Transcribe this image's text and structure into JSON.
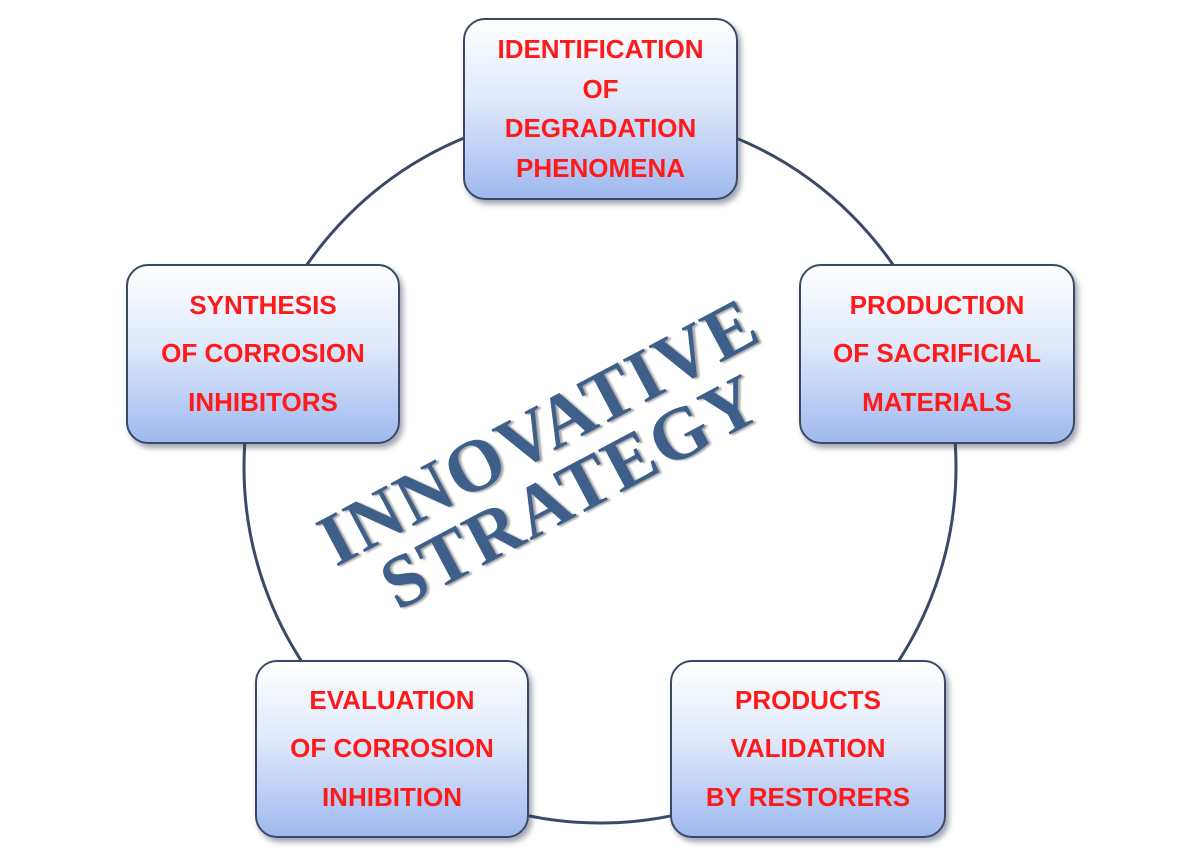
{
  "center": {
    "line1": "INNOVATIVE",
    "line2": "STRATEGY"
  },
  "cycle": [
    {
      "id": "identification",
      "lines": [
        "IDENTIFICATION",
        "OF",
        "DEGRADATION",
        "PHENOMENA"
      ]
    },
    {
      "id": "production",
      "lines": [
        "PRODUCTION",
        "OF SACRIFICIAL",
        "MATERIALS"
      ]
    },
    {
      "id": "products",
      "lines": [
        "PRODUCTS",
        "VALIDATION",
        "BY RESTORERS"
      ]
    },
    {
      "id": "evaluation",
      "lines": [
        "EVALUATION",
        "OF CORROSION",
        "INHIBITION"
      ]
    },
    {
      "id": "synthesis",
      "lines": [
        "SYNTHESIS",
        "OF CORROSION",
        "INHIBITORS"
      ]
    }
  ],
  "colors": {
    "node_text": "#ff1a1a",
    "center_text": "#3e5f8a",
    "ring": "#3a4a66"
  }
}
